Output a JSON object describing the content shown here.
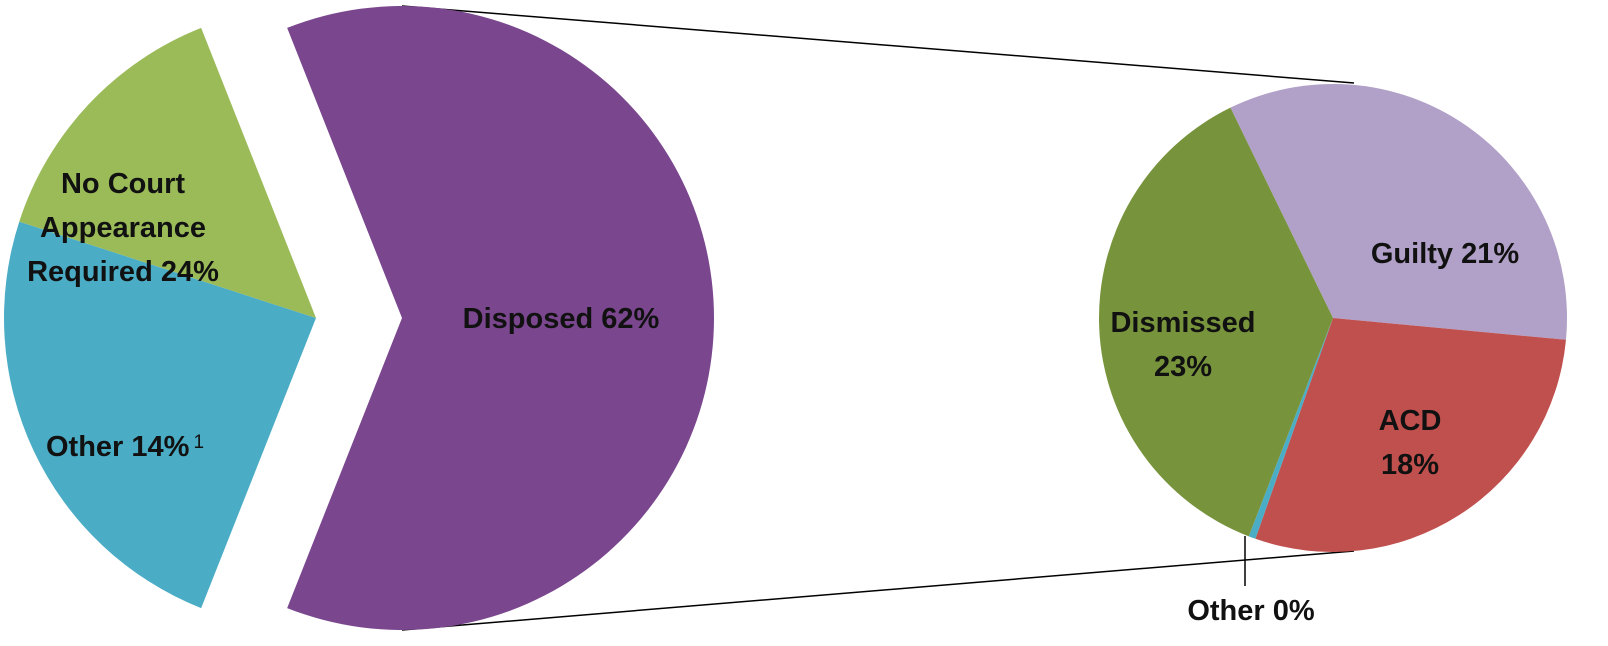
{
  "chart_data": [
    {
      "type": "pie",
      "slices": [
        {
          "label": "Disposed 62%",
          "value": 62,
          "color": "#7a478e"
        },
        {
          "label": "No Court Appearance Required 24%",
          "label_lines": [
            "No Court",
            "Appearance",
            "Required 24%"
          ],
          "value": 24,
          "color": "#4bacc6"
        },
        {
          "label": "Other 14%",
          "footnote": "1",
          "value": 14,
          "color": "#9bbb59"
        }
      ]
    },
    {
      "type": "pie",
      "slices": [
        {
          "label": "Guilty 21%",
          "value": 21,
          "color": "#b1a0c7"
        },
        {
          "label": "ACD 18%",
          "label_lines": [
            "ACD",
            "18%"
          ],
          "value": 18,
          "color": "#c0504d"
        },
        {
          "label": "Other 0%",
          "value": 0.3,
          "color": "#4bacc6"
        },
        {
          "label": "Dismissed 23%",
          "label_lines": [
            "Dismissed",
            "23%"
          ],
          "value": 23,
          "color": "#77933c"
        }
      ]
    }
  ]
}
